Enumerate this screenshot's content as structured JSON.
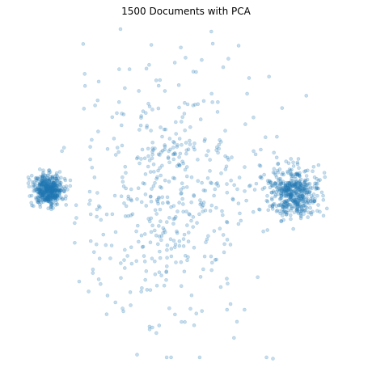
{
  "chart_data": {
    "type": "scatter",
    "title": "1500 Documents with PCA",
    "xlabel": "",
    "ylabel": "",
    "axes_visible": false,
    "grid": false,
    "legend": "none",
    "point_color": "#1f77b4",
    "point_alpha": 0.25,
    "point_count": 1500,
    "xlim": [
      -1.0,
      1.0
    ],
    "ylim": [
      -1.0,
      1.0
    ],
    "clusters": [
      {
        "description": "dense left cluster",
        "n": 500,
        "center": [
          -0.82,
          0.02
        ],
        "spread": [
          0.045,
          0.045
        ],
        "distribution": "gaussian"
      },
      {
        "description": "diffuse middle cloud",
        "n": 500,
        "center": [
          -0.1,
          0.0
        ],
        "spread": [
          0.25,
          0.4
        ],
        "distribution": "uniform-ish"
      },
      {
        "description": "right cluster",
        "n": 500,
        "center": [
          0.64,
          0.0
        ],
        "spread": [
          0.075,
          0.075
        ],
        "distribution": "gaussian"
      }
    ]
  }
}
